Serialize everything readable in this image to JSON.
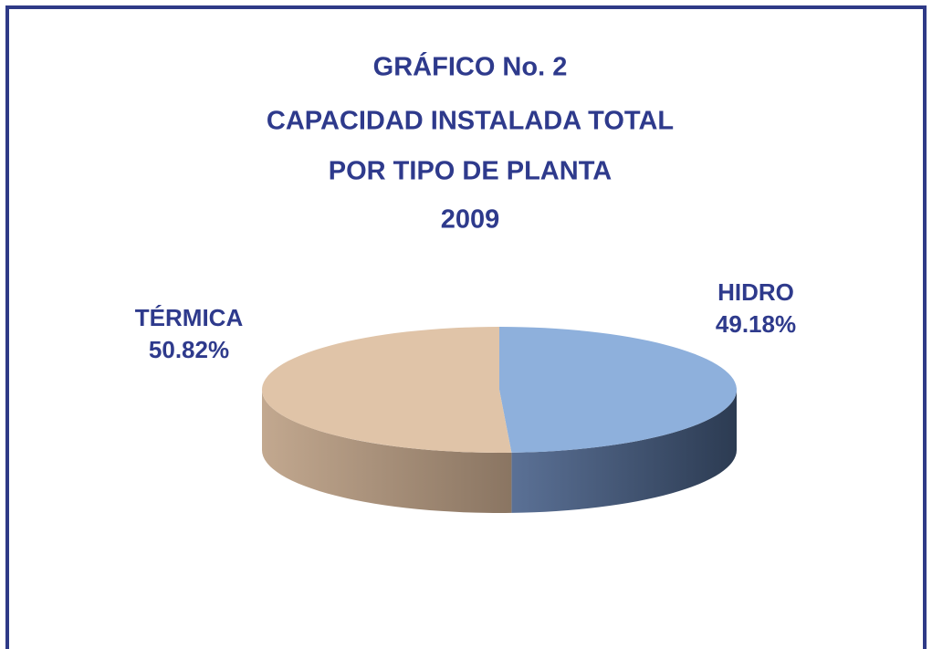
{
  "chart_data": {
    "type": "pie3d",
    "title": [
      "GRÁFICO No. 2",
      "CAPACIDAD INSTALADA TOTAL",
      "POR TIPO DE PLANTA",
      "2009"
    ],
    "categories": [
      "HIDRO",
      "TÉRMICA"
    ],
    "values": [
      49.18,
      50.82
    ],
    "value_labels": [
      "49.18%",
      "50.82%"
    ],
    "colors": [
      "#8eb0dc",
      "#e0c4a8"
    ]
  }
}
